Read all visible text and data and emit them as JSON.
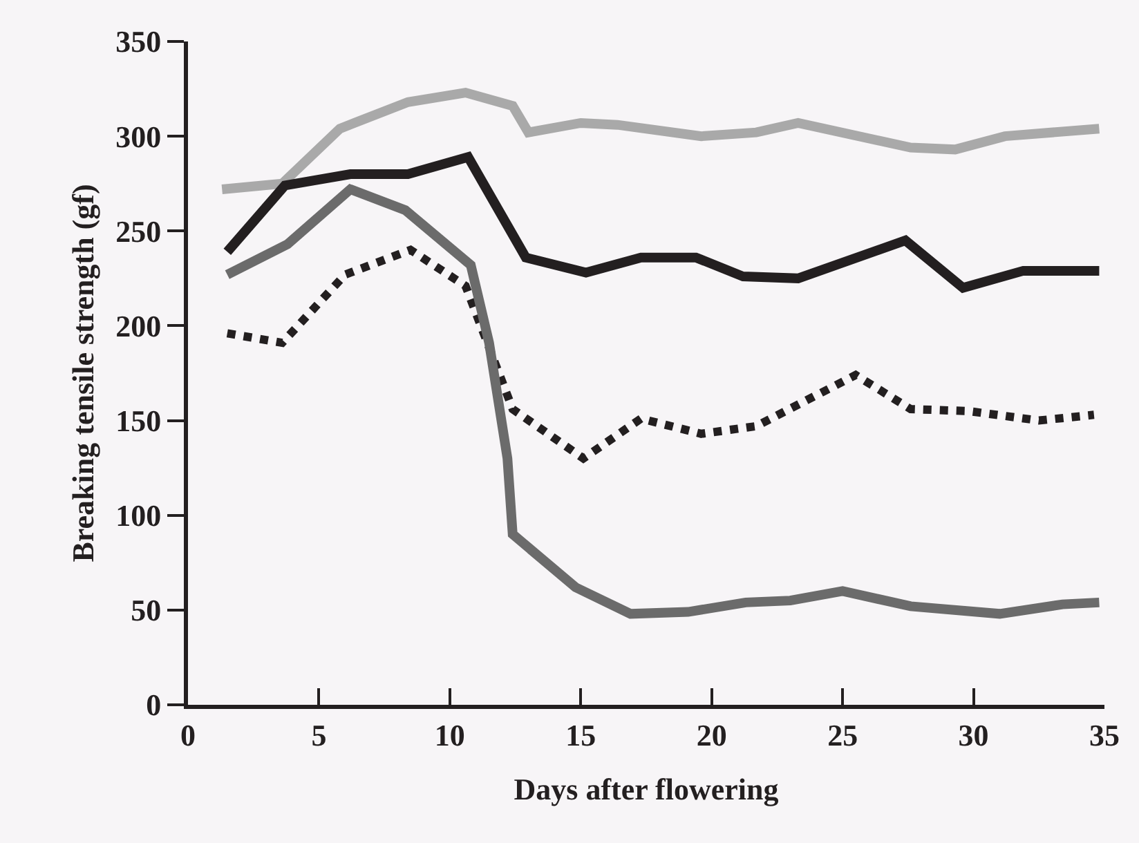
{
  "chart_data": {
    "type": "line",
    "xlabel": "Days after flowering",
    "ylabel": "Breaking tensile strength (gf)",
    "xlim": [
      0,
      35
    ],
    "xticks": [
      0,
      5,
      10,
      15,
      20,
      25,
      30,
      35
    ],
    "ylim": [
      0,
      350
    ],
    "yticks": [
      0,
      50,
      100,
      150,
      200,
      250,
      300,
      350
    ],
    "grid": false,
    "legend": false,
    "marker": "none",
    "series": [
      {
        "color": "#a9a9a9",
        "line_style": "solid",
        "x": [
          1.3,
          3.6,
          5.8,
          8.4,
          10.6,
          12.4,
          13,
          15,
          16.4,
          19.6,
          21.7,
          23.3,
          27.6,
          29.3,
          31.2,
          34.8
        ],
        "values": [
          272,
          275,
          304,
          318,
          323,
          316,
          302,
          307,
          306,
          300,
          302,
          307,
          294,
          293,
          300,
          304
        ]
      },
      {
        "color": "#231f20",
        "line_style": "solid",
        "x": [
          1.5,
          3.7,
          6.2,
          8.4,
          10.7,
          12.9,
          15.2,
          17.3,
          19.4,
          21.2,
          23.3,
          27.4,
          29.6,
          31.9,
          34.8
        ],
        "values": [
          239,
          274,
          280,
          280,
          289,
          236,
          228,
          236,
          236,
          226,
          225,
          245,
          220,
          229,
          229
        ]
      },
      {
        "color": "#231f20",
        "line_style": "dotted",
        "x": [
          1.5,
          3.6,
          6,
          8.5,
          10.6,
          12.4,
          15.1,
          17.3,
          19.6,
          21.7,
          25.5,
          27.6,
          29.8,
          32.5,
          34.6
        ],
        "values": [
          196,
          191,
          227,
          240,
          221,
          156,
          130,
          151,
          143,
          147,
          174,
          156,
          155,
          150,
          153
        ]
      },
      {
        "color": "#6b6b6b",
        "line_style": "solid",
        "x": [
          1.5,
          3.8,
          6.2,
          8.3,
          10.8,
          11.5,
          12.2,
          12.4,
          14.8,
          16.9,
          19.1,
          21.3,
          23,
          25,
          27.6,
          31,
          33.4,
          34.8
        ],
        "values": [
          227,
          243,
          272,
          261,
          232,
          191,
          130,
          90,
          62,
          48,
          49,
          54,
          55,
          60,
          52,
          48,
          53,
          54
        ]
      }
    ]
  }
}
